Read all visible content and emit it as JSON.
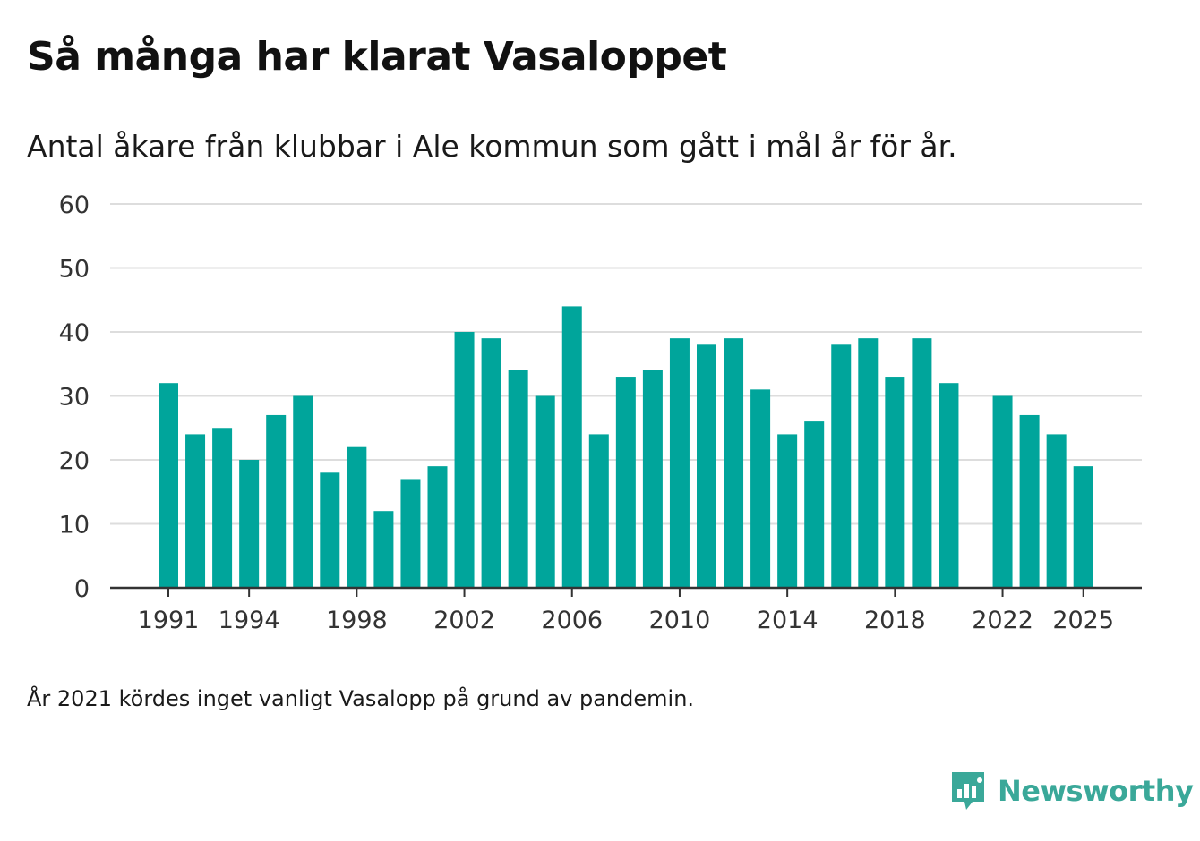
{
  "title": "Så många har klarat Vasaloppet",
  "subtitle": "Antal åkare från klubbar i Ale kommun som gått i mål år för år.",
  "footnote": "År 2021 kördes inget vanligt Vasalopp på grund av pandemin.",
  "brand": {
    "name": "Newsworthy",
    "icon": "newsworthy-logo-icon",
    "color": "#3aa899"
  },
  "colors": {
    "bar": "#00a59b",
    "grid": "#dddddd",
    "axis": "#333333"
  },
  "chart_data": {
    "type": "bar",
    "title": "Så många har klarat Vasaloppet",
    "xlabel": "",
    "ylabel": "",
    "ylim": [
      0,
      60
    ],
    "yticks": [
      0,
      10,
      20,
      30,
      40,
      50,
      60
    ],
    "xticks": [
      1991,
      1994,
      1998,
      2002,
      2006,
      2010,
      2014,
      2018,
      2022,
      2025
    ],
    "grid": true,
    "categories": [
      1991,
      1992,
      1993,
      1994,
      1995,
      1996,
      1997,
      1998,
      1999,
      2000,
      2001,
      2002,
      2003,
      2004,
      2005,
      2006,
      2007,
      2008,
      2009,
      2010,
      2011,
      2012,
      2013,
      2014,
      2015,
      2016,
      2017,
      2018,
      2019,
      2020,
      2021,
      2022,
      2023,
      2024,
      2025
    ],
    "values": [
      32,
      24,
      25,
      20,
      27,
      30,
      18,
      22,
      12,
      17,
      19,
      40,
      39,
      34,
      30,
      44,
      24,
      33,
      34,
      39,
      38,
      39,
      31,
      24,
      26,
      38,
      39,
      33,
      39,
      32,
      null,
      30,
      27,
      24,
      19
    ]
  }
}
